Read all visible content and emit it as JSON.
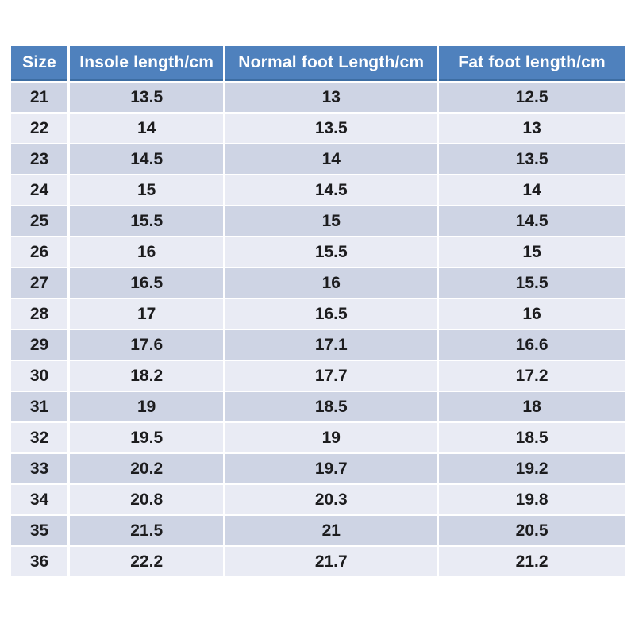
{
  "colors": {
    "background": "#ffffff",
    "header_bg": "#4f81bd",
    "header_text": "#ffffff",
    "row_odd": "#ced4e4",
    "row_even": "#e9ebf4",
    "cell_text": "#1c1c1e"
  },
  "chart_data": {
    "type": "table",
    "headers": [
      "Size",
      "Insole length/cm",
      "Normal foot Length/cm",
      "Fat foot length/cm"
    ],
    "rows": [
      [
        "21",
        "13.5",
        "13",
        "12.5"
      ],
      [
        "22",
        "14",
        "13.5",
        "13"
      ],
      [
        "23",
        "14.5",
        "14",
        "13.5"
      ],
      [
        "24",
        "15",
        "14.5",
        "14"
      ],
      [
        "25",
        "15.5",
        "15",
        "14.5"
      ],
      [
        "26",
        "16",
        "15.5",
        "15"
      ],
      [
        "27",
        "16.5",
        "16",
        "15.5"
      ],
      [
        "28",
        "17",
        "16.5",
        "16"
      ],
      [
        "29",
        "17.6",
        "17.1",
        "16.6"
      ],
      [
        "30",
        "18.2",
        "17.7",
        "17.2"
      ],
      [
        "31",
        "19",
        "18.5",
        "18"
      ],
      [
        "32",
        "19.5",
        "19",
        "18.5"
      ],
      [
        "33",
        "20.2",
        "19.7",
        "19.2"
      ],
      [
        "34",
        "20.8",
        "20.3",
        "19.8"
      ],
      [
        "35",
        "21.5",
        "21",
        "20.5"
      ],
      [
        "36",
        "22.2",
        "21.7",
        "21.2"
      ]
    ]
  }
}
